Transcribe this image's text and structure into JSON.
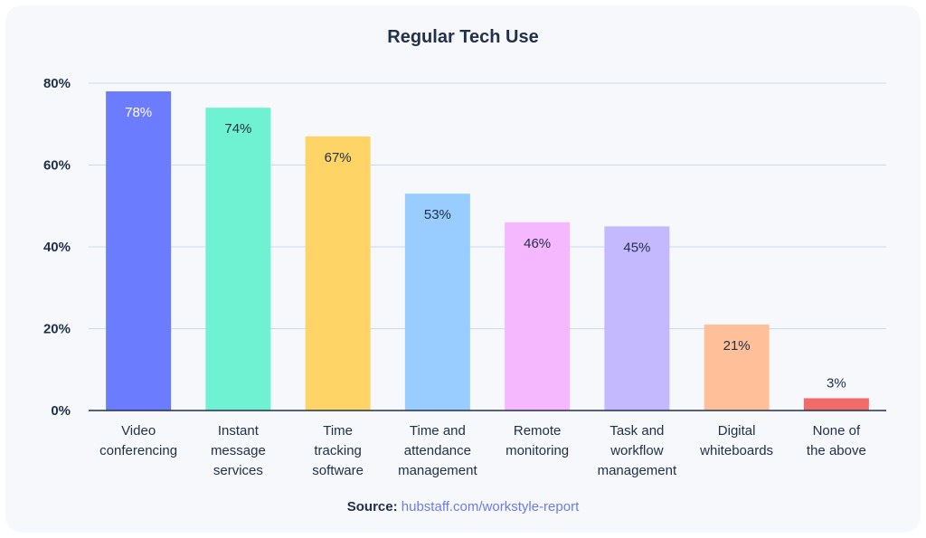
{
  "chart_data": {
    "type": "bar",
    "title": "Regular Tech Use",
    "categories": [
      [
        "Video",
        "conferencing"
      ],
      [
        "Instant",
        "message",
        "services"
      ],
      [
        "Time",
        "tracking",
        "software"
      ],
      [
        "Time and",
        "attendance",
        "management"
      ],
      [
        "Remote",
        "monitoring"
      ],
      [
        "Task and",
        "workflow",
        "management"
      ],
      [
        "Digital",
        "whiteboards"
      ],
      [
        "None of",
        "the above"
      ]
    ],
    "values": [
      78,
      74,
      67,
      53,
      46,
      45,
      21,
      3
    ],
    "value_labels": [
      "78%",
      "74%",
      "67%",
      "53%",
      "46%",
      "45%",
      "21%",
      "3%"
    ],
    "colors": [
      "#6b7cff",
      "#6ff2d2",
      "#ffd466",
      "#99ccff",
      "#f5b8ff",
      "#c4b8ff",
      "#ffbf99",
      "#f26b6b"
    ],
    "label_colors": [
      "#ffffff",
      "#22304a",
      "#22304a",
      "#22304a",
      "#22304a",
      "#22304a",
      "#22304a",
      "#22304a"
    ],
    "ylim": [
      0,
      80
    ],
    "yticks": [
      0,
      20,
      40,
      60,
      80
    ],
    "ytick_labels": [
      "0%",
      "20%",
      "40%",
      "60%",
      "80%"
    ],
    "grid": true,
    "xlabel": "",
    "ylabel": ""
  },
  "source": {
    "label": "Source:",
    "link": "hubstaff.com/workstyle-report"
  }
}
